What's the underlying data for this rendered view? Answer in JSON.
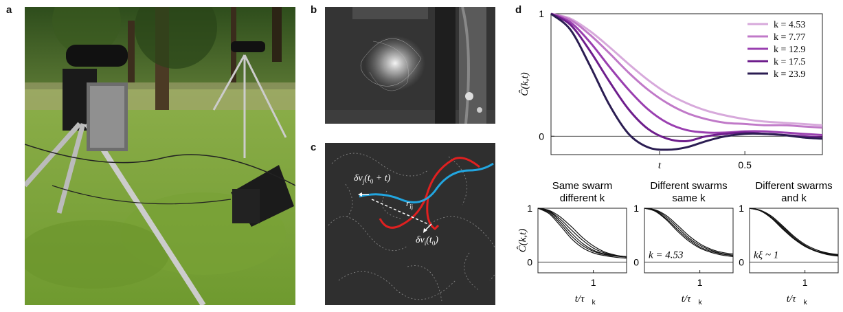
{
  "panels": {
    "a": "a",
    "b": "b",
    "c": "c",
    "d": "d"
  },
  "panel_c": {
    "label_vj": "δv",
    "label_vj_sub": "j",
    "label_vj_arg": "(t",
    "label_vj_arg_sub": "0",
    "label_vj_arg_end": " + t)",
    "label_rij": "r",
    "label_rij_sub": "ij",
    "label_vi": "δv",
    "label_vi_sub": "i",
    "label_vi_arg": "(t",
    "label_vi_arg_sub": "0",
    "label_vi_arg_end": ")"
  },
  "colors": {
    "k453": "#d7a9db",
    "k777": "#c079c8",
    "k129": "#9a3fb0",
    "k175": "#6e1e8c",
    "k239": "#2b1d52",
    "trail_red": "#e02020",
    "trail_blue": "#22a6e0"
  },
  "chart_data": [
    {
      "type": "line",
      "panel": "d-main",
      "ylabel": "Ĉ(k,t)",
      "xlabel": "t",
      "xticks": [
        "0.5"
      ],
      "yticks": [
        "1",
        "0"
      ],
      "xlim": [
        0,
        0.7
      ],
      "ylim": [
        -0.15,
        1.0
      ],
      "legend_position": "top-right",
      "series": [
        {
          "name": "k = 4.53",
          "color_key": "k453",
          "x": [
            0,
            0.05,
            0.1,
            0.15,
            0.2,
            0.25,
            0.3,
            0.35,
            0.4,
            0.45,
            0.5,
            0.55,
            0.6,
            0.65,
            0.7
          ],
          "y": [
            1.0,
            0.96,
            0.86,
            0.73,
            0.59,
            0.46,
            0.35,
            0.27,
            0.21,
            0.17,
            0.14,
            0.12,
            0.11,
            0.1,
            0.09
          ]
        },
        {
          "name": "k = 7.77",
          "color_key": "k777",
          "x": [
            0,
            0.05,
            0.1,
            0.15,
            0.2,
            0.25,
            0.3,
            0.35,
            0.4,
            0.45,
            0.5,
            0.55,
            0.6,
            0.65,
            0.7
          ],
          "y": [
            1.0,
            0.95,
            0.83,
            0.68,
            0.52,
            0.38,
            0.27,
            0.19,
            0.14,
            0.11,
            0.1,
            0.09,
            0.09,
            0.08,
            0.07
          ]
        },
        {
          "name": "k = 12.9",
          "color_key": "k129",
          "x": [
            0,
            0.05,
            0.1,
            0.15,
            0.2,
            0.25,
            0.3,
            0.35,
            0.4,
            0.45,
            0.5,
            0.55,
            0.6,
            0.65,
            0.7
          ],
          "y": [
            1.0,
            0.93,
            0.77,
            0.57,
            0.38,
            0.22,
            0.11,
            0.05,
            0.03,
            0.03,
            0.04,
            0.04,
            0.03,
            0.02,
            0.01
          ]
        },
        {
          "name": "k = 17.5",
          "color_key": "k175",
          "x": [
            0,
            0.05,
            0.1,
            0.15,
            0.2,
            0.25,
            0.3,
            0.35,
            0.4,
            0.45,
            0.5,
            0.55,
            0.6,
            0.65,
            0.7
          ],
          "y": [
            1.0,
            0.91,
            0.7,
            0.45,
            0.22,
            0.06,
            -0.02,
            -0.04,
            0.0,
            0.02,
            0.03,
            0.02,
            0.01,
            0.0,
            -0.01
          ]
        },
        {
          "name": "k = 23.9",
          "color_key": "k239",
          "x": [
            0,
            0.05,
            0.1,
            0.15,
            0.2,
            0.25,
            0.3,
            0.35,
            0.4,
            0.45,
            0.5,
            0.55,
            0.6,
            0.65,
            0.7
          ],
          "y": [
            1.0,
            0.87,
            0.58,
            0.26,
            0.02,
            -0.09,
            -0.11,
            -0.09,
            -0.04,
            0.0,
            0.02,
            0.02,
            0.01,
            -0.01,
            -0.02
          ]
        }
      ]
    },
    {
      "type": "line",
      "panel": "d-small-1",
      "title_line1": "Same swarm",
      "title_line2": "different k",
      "ylabel": "Ĉ(k,t)",
      "xlabel": "t/τ",
      "xlabel_sub": "k",
      "xticks": [
        "1"
      ],
      "yticks": [
        "1",
        "0"
      ],
      "annotation": "",
      "xlim": [
        0,
        1.6
      ],
      "ylim": [
        -0.2,
        1.0
      ],
      "series": [
        {
          "x": [
            0,
            0.2,
            0.4,
            0.6,
            0.8,
            1.0,
            1.2,
            1.4,
            1.6
          ],
          "y": [
            1.0,
            0.96,
            0.84,
            0.66,
            0.46,
            0.3,
            0.19,
            0.13,
            0.09
          ]
        },
        {
          "x": [
            0,
            0.2,
            0.4,
            0.6,
            0.8,
            1.0,
            1.2,
            1.4,
            1.6
          ],
          "y": [
            1.0,
            0.95,
            0.8,
            0.6,
            0.41,
            0.26,
            0.17,
            0.12,
            0.1
          ]
        },
        {
          "x": [
            0,
            0.2,
            0.4,
            0.6,
            0.8,
            1.0,
            1.2,
            1.4,
            1.6
          ],
          "y": [
            1.0,
            0.94,
            0.76,
            0.54,
            0.35,
            0.22,
            0.15,
            0.12,
            0.1
          ]
        },
        {
          "x": [
            0,
            0.2,
            0.4,
            0.6,
            0.8,
            1.0,
            1.2,
            1.4,
            1.6
          ],
          "y": [
            1.0,
            0.92,
            0.72,
            0.49,
            0.31,
            0.2,
            0.14,
            0.11,
            0.09
          ]
        },
        {
          "x": [
            0,
            0.2,
            0.4,
            0.6,
            0.8,
            1.0,
            1.2,
            1.4,
            1.6
          ],
          "y": [
            1.0,
            0.9,
            0.68,
            0.44,
            0.27,
            0.17,
            0.12,
            0.09,
            0.07
          ]
        }
      ]
    },
    {
      "type": "line",
      "panel": "d-small-2",
      "title_line1": "Different swarms",
      "title_line2": "same k",
      "ylabel": "",
      "xlabel": "t/τ",
      "xlabel_sub": "k",
      "xticks": [
        "1"
      ],
      "yticks": [
        "1",
        "0"
      ],
      "annotation": "k = 4.53",
      "xlim": [
        0,
        1.6
      ],
      "ylim": [
        -0.2,
        1.0
      ],
      "series": [
        {
          "x": [
            0,
            0.2,
            0.4,
            0.6,
            0.8,
            1.0,
            1.2,
            1.4,
            1.6
          ],
          "y": [
            1.0,
            0.97,
            0.86,
            0.68,
            0.49,
            0.34,
            0.24,
            0.18,
            0.15
          ]
        },
        {
          "x": [
            0,
            0.2,
            0.4,
            0.6,
            0.8,
            1.0,
            1.2,
            1.4,
            1.6
          ],
          "y": [
            1.0,
            0.96,
            0.83,
            0.64,
            0.45,
            0.31,
            0.22,
            0.16,
            0.13
          ]
        },
        {
          "x": [
            0,
            0.2,
            0.4,
            0.6,
            0.8,
            1.0,
            1.2,
            1.4,
            1.6
          ],
          "y": [
            1.0,
            0.95,
            0.8,
            0.6,
            0.42,
            0.28,
            0.2,
            0.15,
            0.12
          ]
        },
        {
          "x": [
            0,
            0.2,
            0.4,
            0.6,
            0.8,
            1.0,
            1.2,
            1.4,
            1.6
          ],
          "y": [
            1.0,
            0.94,
            0.78,
            0.57,
            0.39,
            0.26,
            0.18,
            0.13,
            0.1
          ]
        }
      ]
    },
    {
      "type": "line",
      "panel": "d-small-3",
      "title_line1": "Different swarms",
      "title_line2": "and k",
      "ylabel": "",
      "xlabel": "t/τ",
      "xlabel_sub": "k",
      "xticks": [
        "1"
      ],
      "yticks": [
        "1",
        "0"
      ],
      "annotation": "kξ ~ 1",
      "xlim": [
        0,
        1.6
      ],
      "ylim": [
        -0.2,
        1.0
      ],
      "series": [
        {
          "x": [
            0,
            0.2,
            0.4,
            0.6,
            0.8,
            1.0,
            1.2,
            1.4,
            1.6
          ],
          "y": [
            1.0,
            0.96,
            0.85,
            0.67,
            0.48,
            0.33,
            0.23,
            0.17,
            0.14
          ]
        },
        {
          "x": [
            0,
            0.2,
            0.4,
            0.6,
            0.8,
            1.0,
            1.2,
            1.4,
            1.6
          ],
          "y": [
            1.0,
            0.96,
            0.83,
            0.65,
            0.46,
            0.31,
            0.21,
            0.16,
            0.13
          ]
        },
        {
          "x": [
            0,
            0.2,
            0.4,
            0.6,
            0.8,
            1.0,
            1.2,
            1.4,
            1.6
          ],
          "y": [
            1.0,
            0.95,
            0.82,
            0.63,
            0.44,
            0.3,
            0.2,
            0.15,
            0.12
          ]
        },
        {
          "x": [
            0,
            0.2,
            0.4,
            0.6,
            0.8,
            1.0,
            1.2,
            1.4,
            1.6
          ],
          "y": [
            1.0,
            0.95,
            0.81,
            0.61,
            0.43,
            0.29,
            0.2,
            0.14,
            0.11
          ]
        }
      ]
    }
  ]
}
